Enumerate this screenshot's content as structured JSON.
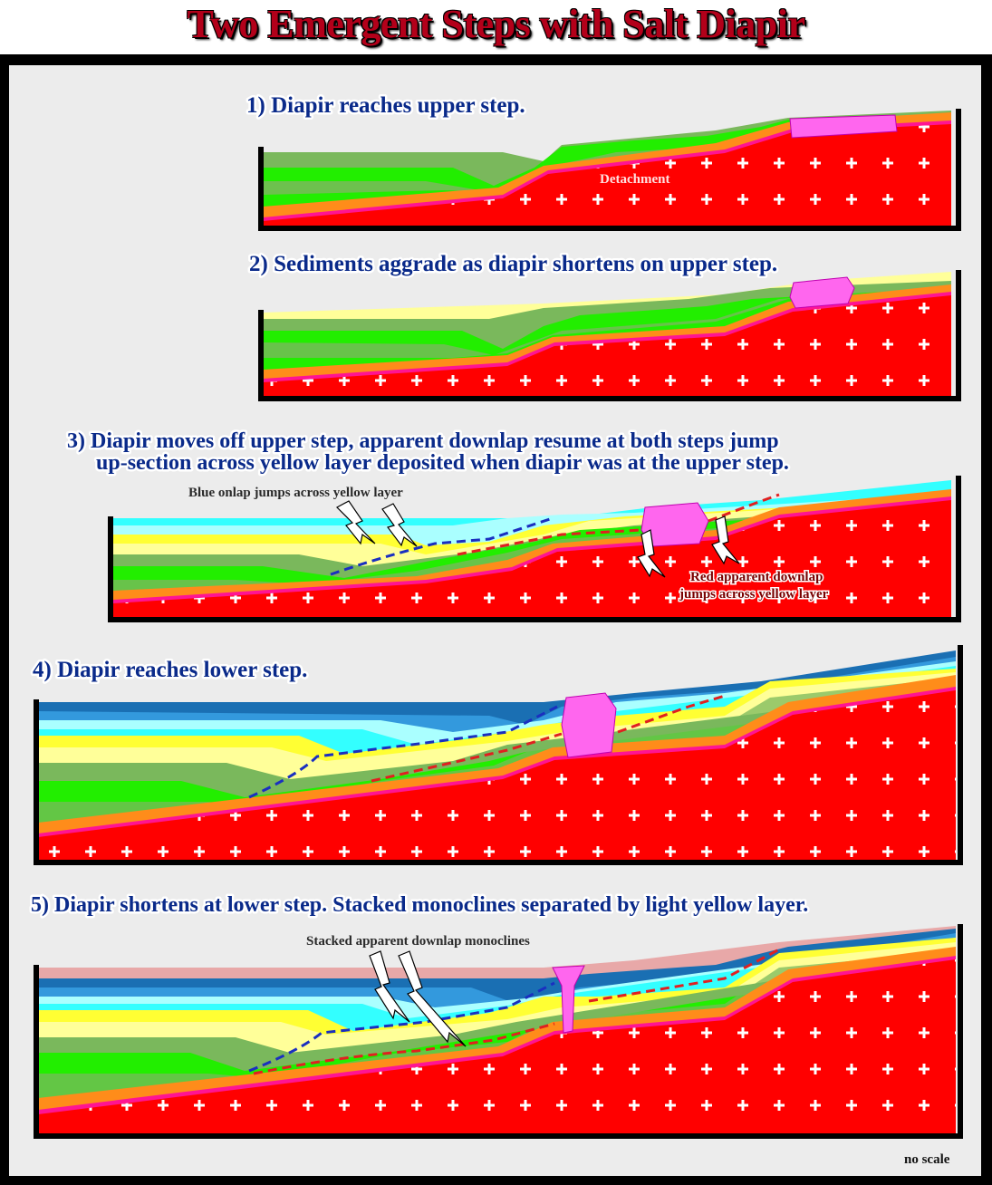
{
  "title": "Two Emergent Steps with Salt Diapir",
  "panels": [
    {
      "caption": "1) Diapir reaches upper step.",
      "label": "Detachment"
    },
    {
      "caption": "2) Sediments aggrade as diapir shortens on upper step."
    },
    {
      "caption_line1": "3) Diapir  moves off upper step, apparent downlap resume at both steps jump",
      "caption_line2": "up-section across yellow layer deposited when diapir was at the upper step.",
      "note_blue": "Blue onlap jumps across yellow layer",
      "note_red_line1": "Red apparent downlap",
      "note_red_line2": "jumps across yellow layer"
    },
    {
      "caption": "4) Diapir reaches lower step."
    },
    {
      "caption": "5) Diapir shortens at lower step. Stacked monoclines separated by light yellow layer.",
      "note": "Stacked  apparent downlap monoclines"
    }
  ],
  "footer": "no scale",
  "colors": {
    "salt": "#ff0000",
    "diapir": "#ff66ee",
    "detachment": "#ff1493",
    "orange": "#ff8c1a",
    "bright_green": "#22ee00",
    "olive_green": "#7ab85c",
    "yellow": "#ffff33",
    "light_yellow": "#ffff99",
    "cyan": "#33ffff",
    "light_cyan": "#aaffff",
    "blue": "#3399dd",
    "dark_blue": "#1a6fb3",
    "pink": "#e8a8a8",
    "background": "#ececec",
    "title": "#b3001a"
  },
  "icons": [
    "lightning-arrow-icon"
  ]
}
